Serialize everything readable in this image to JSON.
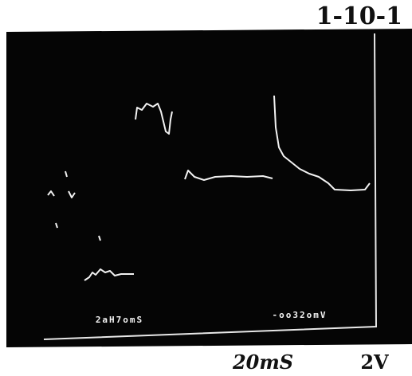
{
  "header": {
    "label": "1-10-1"
  },
  "screen": {
    "time_readout": "2aH7omS",
    "voltage_readout": "-oo32omV"
  },
  "footer": {
    "time_scale": "20mS",
    "volt_scale": "2V"
  }
}
